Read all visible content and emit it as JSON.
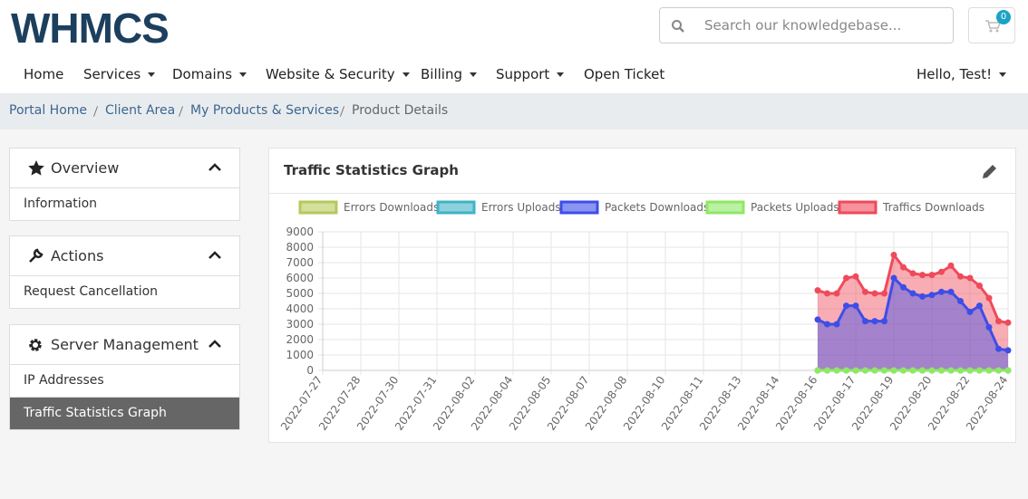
{
  "header": {
    "logo": "WHMCS",
    "search_placeholder": "Search our knowledgebase...",
    "cart_count": 0
  },
  "nav": {
    "items": [
      "Home",
      "Services",
      "Domains",
      "Website & Security",
      "Billing",
      "Support",
      "Open Ticket"
    ],
    "user": "Hello, Test!"
  },
  "breadcrumb": [
    "Portal Home",
    "Client Area",
    "My Products & Services",
    "Product Details"
  ],
  "sidebar": [
    {
      "title": "Overview",
      "items": [
        "Information"
      ]
    },
    {
      "title": "Actions",
      "items": [
        "Request Cancellation"
      ]
    },
    {
      "title": "Server Management",
      "items": [
        "IP Addresses",
        "Traffic Statistics Graph"
      ]
    }
  ],
  "panel": {
    "title": "Traffic Statistics Graph"
  },
  "chart_data": {
    "type": "area",
    "categories": [
      "2022-07-27",
      null,
      null,
      null,
      "2022-07-28",
      null,
      null,
      null,
      "2022-07-30",
      null,
      null,
      null,
      "2022-07-31",
      null,
      null,
      null,
      "2022-08-02",
      null,
      null,
      null,
      "2022-08-04",
      null,
      null,
      null,
      "2022-08-05",
      null,
      null,
      null,
      "2022-08-07",
      null,
      null,
      null,
      "2022-08-08",
      null,
      null,
      null,
      "2022-08-10",
      null,
      null,
      null,
      "2022-08-11",
      null,
      null,
      null,
      "2022-08-13",
      null,
      null,
      null,
      "2022-08-14",
      null,
      null,
      null,
      "2022-08-16",
      null,
      null,
      null,
      "2022-08-17",
      null,
      null,
      null,
      "2022-08-19",
      null,
      null,
      null,
      "2022-08-20",
      null,
      null,
      null,
      "2022-08-22",
      null,
      null,
      null,
      "2022-08-24"
    ],
    "series": [
      {
        "name": "Errors Downloads",
        "color": "#b5c95a",
        "values": [
          null,
          null,
          null,
          null,
          null,
          null,
          null,
          null,
          null,
          null,
          null,
          null,
          null,
          null,
          null,
          null,
          null,
          null,
          null,
          null,
          null,
          null,
          null,
          null,
          null,
          null,
          null,
          null,
          null,
          null,
          null,
          null,
          null,
          null,
          null,
          null,
          null,
          null,
          null,
          null,
          null,
          null,
          null,
          null,
          null,
          null,
          null,
          null,
          null,
          null,
          null,
          null,
          0,
          0,
          0,
          0,
          0,
          0,
          0,
          0,
          0,
          0,
          0,
          0,
          0,
          0,
          0,
          0,
          0,
          0,
          0,
          0,
          0
        ]
      },
      {
        "name": "Errors Uploads",
        "color": "#3fb3c4",
        "values": [
          null,
          null,
          null,
          null,
          null,
          null,
          null,
          null,
          null,
          null,
          null,
          null,
          null,
          null,
          null,
          null,
          null,
          null,
          null,
          null,
          null,
          null,
          null,
          null,
          null,
          null,
          null,
          null,
          null,
          null,
          null,
          null,
          null,
          null,
          null,
          null,
          null,
          null,
          null,
          null,
          null,
          null,
          null,
          null,
          null,
          null,
          null,
          null,
          null,
          null,
          null,
          null,
          0,
          0,
          0,
          0,
          0,
          0,
          0,
          0,
          0,
          0,
          0,
          0,
          0,
          0,
          0,
          0,
          0,
          0,
          0,
          0,
          0
        ]
      },
      {
        "name": "Packets Downloads",
        "color": "#3d4ee8",
        "values": [
          null,
          null,
          null,
          null,
          null,
          null,
          null,
          null,
          null,
          null,
          null,
          null,
          null,
          null,
          null,
          null,
          null,
          null,
          null,
          null,
          null,
          null,
          null,
          null,
          null,
          null,
          null,
          null,
          null,
          null,
          null,
          null,
          null,
          null,
          null,
          null,
          null,
          null,
          null,
          null,
          null,
          null,
          null,
          null,
          null,
          null,
          null,
          null,
          null,
          null,
          null,
          null,
          3300,
          3000,
          3000,
          4200,
          4200,
          3200,
          3200,
          3200,
          6000,
          5400,
          5000,
          4800,
          4900,
          5100,
          5100,
          4500,
          3800,
          4200,
          2800,
          1400,
          1300
        ]
      },
      {
        "name": "Packets Uploads",
        "color": "#8ee864",
        "values": [
          null,
          null,
          null,
          null,
          null,
          null,
          null,
          null,
          null,
          null,
          null,
          null,
          null,
          null,
          null,
          null,
          null,
          null,
          null,
          null,
          null,
          null,
          null,
          null,
          null,
          null,
          null,
          null,
          null,
          null,
          null,
          null,
          null,
          null,
          null,
          null,
          null,
          null,
          null,
          null,
          null,
          null,
          null,
          null,
          null,
          null,
          null,
          null,
          null,
          null,
          null,
          null,
          0,
          0,
          0,
          0,
          0,
          0,
          0,
          0,
          0,
          0,
          0,
          0,
          0,
          0,
          0,
          0,
          0,
          0,
          0,
          0,
          0
        ]
      },
      {
        "name": "Traffics Downloads",
        "color": "#ef4a5a",
        "values": [
          null,
          null,
          null,
          null,
          null,
          null,
          null,
          null,
          null,
          null,
          null,
          null,
          null,
          null,
          null,
          null,
          null,
          null,
          null,
          null,
          null,
          null,
          null,
          null,
          null,
          null,
          null,
          null,
          null,
          null,
          null,
          null,
          null,
          null,
          null,
          null,
          null,
          null,
          null,
          null,
          null,
          null,
          null,
          null,
          null,
          null,
          null,
          null,
          null,
          null,
          null,
          null,
          5200,
          5000,
          5000,
          6000,
          6100,
          5100,
          5000,
          5000,
          7500,
          6700,
          6300,
          6200,
          6200,
          6400,
          6800,
          6100,
          6000,
          5500,
          4700,
          3200,
          3100
        ]
      }
    ],
    "ylim": [
      0,
      9000
    ],
    "yticks": [
      0,
      1000,
      2000,
      3000,
      4000,
      5000,
      6000,
      7000,
      8000,
      9000
    ],
    "grid": true
  }
}
